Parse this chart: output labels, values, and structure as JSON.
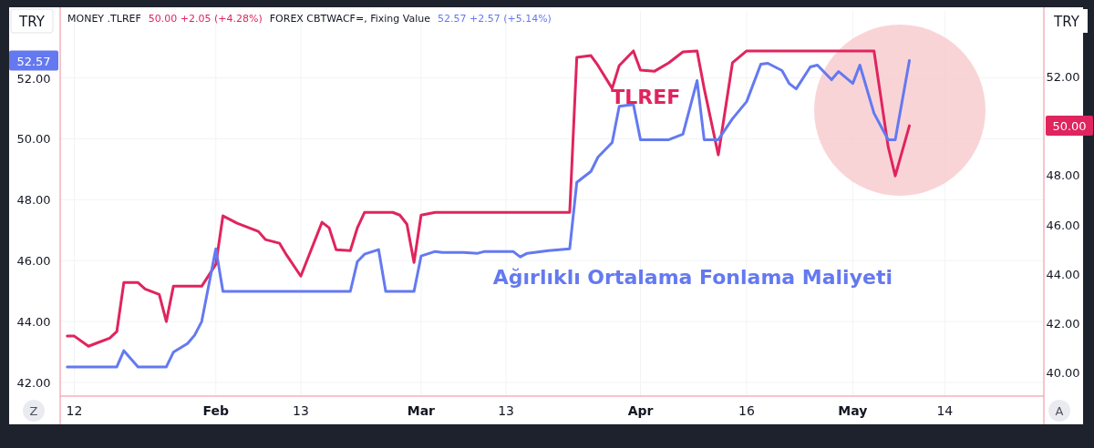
{
  "chart_data": {
    "type": "line",
    "ylabel": "TRY",
    "y2label": "TRY",
    "xlim": [
      "--01-10",
      "--05-28"
    ],
    "xticks": [
      {
        "value": "--01-12",
        "label": "12"
      },
      {
        "value": "--02-01",
        "label": "Feb"
      },
      {
        "value": "--02-13",
        "label": "13"
      },
      {
        "value": "--03-01",
        "label": "Mar"
      },
      {
        "value": "--03-13",
        "label": "13"
      },
      {
        "value": "--04-01",
        "label": "Apr"
      },
      {
        "value": "--04-16",
        "label": "16"
      },
      {
        "value": "--05-01",
        "label": "May"
      },
      {
        "value": "--05-14",
        "label": "14"
      }
    ],
    "ylim": [
      41.55,
      54.2
    ],
    "yticks": [
      {
        "value": 42,
        "label": "42.00"
      },
      {
        "value": 44,
        "label": "44.00"
      },
      {
        "value": 46,
        "label": "46.00"
      },
      {
        "value": 48,
        "label": "48.00"
      },
      {
        "value": 50,
        "label": "50.00"
      },
      {
        "value": 52,
        "label": "52.00"
      }
    ],
    "y2lim": [
      39.05,
      54.65
    ],
    "y2ticks": [
      {
        "value": 40,
        "label": "40.00"
      },
      {
        "value": 42,
        "label": "42.00"
      },
      {
        "value": 44,
        "label": "44.00"
      },
      {
        "value": 46,
        "label": "46.00"
      },
      {
        "value": 48,
        "label": "48.00"
      },
      {
        "value": 52,
        "label": "52.00"
      }
    ],
    "grid": true,
    "series": [
      {
        "name": "TLREF",
        "color": "#e0245e",
        "axis": "y2",
        "x": [
          "--01-11",
          "--01-12",
          "--01-14",
          "--01-15",
          "--01-17",
          "--01-18",
          "--01-19",
          "--01-21",
          "--01-22",
          "--01-24",
          "--01-25",
          "--01-26",
          "--01-30",
          "--02-01",
          "--02-02",
          "--02-04",
          "--02-07",
          "--02-08",
          "--02-10",
          "--02-11",
          "--02-13",
          "--02-16",
          "--02-17",
          "--02-18",
          "--02-20",
          "--02-21",
          "--02-22",
          "--02-26",
          "--02-27",
          "--02-28",
          "--02-29",
          "--03-01",
          "--03-03",
          "--03-14",
          "--03-22",
          "--03-23",
          "--03-25",
          "--03-26",
          "--03-28",
          "--03-29",
          "--03-31",
          "--04-01",
          "--04-03",
          "--04-05",
          "--04-07",
          "--04-09",
          "--04-10",
          "--04-12",
          "--04-14",
          "--04-16",
          "--05-04",
          "--05-06",
          "--05-07",
          "--05-09"
        ],
        "values": [
          41.48,
          41.48,
          41.07,
          41.18,
          41.4,
          41.66,
          43.65,
          43.65,
          43.39,
          43.17,
          42.07,
          43.5,
          43.5,
          44.39,
          46.35,
          46.05,
          45.72,
          45.39,
          45.24,
          44.76,
          43.91,
          46.09,
          45.87,
          44.98,
          44.94,
          45.87,
          46.49,
          46.49,
          46.38,
          46.01,
          44.46,
          46.38,
          46.49,
          46.49,
          46.49,
          52.77,
          52.84,
          52.44,
          51.51,
          52.44,
          53.03,
          52.25,
          52.21,
          52.55,
          52.99,
          53.03,
          51.51,
          48.82,
          52.55,
          53.03,
          53.03,
          49.15,
          47.97,
          50.0
        ]
      },
      {
        "name": "Ağırlıklı Ortalama Fonlama Maliyeti",
        "color": "#6479f0",
        "x": [
          "--01-11",
          "--01-18",
          "--01-19",
          "--01-21",
          "--01-25",
          "--01-26",
          "--01-28",
          "--01-29",
          "--01-30",
          "--02-01",
          "--02-02",
          "--02-20",
          "--02-21",
          "--02-22",
          "--02-24",
          "--02-25",
          "--02-29",
          "--03-01",
          "--03-03",
          "--03-04",
          "--03-07",
          "--03-09",
          "--03-10",
          "--03-14",
          "--03-15",
          "--03-16",
          "--03-19",
          "--03-22",
          "--03-23",
          "--03-25",
          "--03-26",
          "--03-28",
          "--03-29",
          "--03-31",
          "--04-01",
          "--04-05",
          "--04-07",
          "--04-09",
          "--04-10",
          "--04-12",
          "--04-14",
          "--04-16",
          "--04-18",
          "--04-19",
          "--04-21",
          "--04-22",
          "--04-23",
          "--04-25",
          "--04-26",
          "--04-28",
          "--04-29",
          "--05-01",
          "--05-02",
          "--05-04",
          "--05-06",
          "--05-07",
          "--05-09"
        ],
        "values": [
          42.51,
          42.51,
          43.04,
          42.51,
          42.51,
          42.99,
          43.28,
          43.55,
          44.0,
          46.39,
          44.99,
          44.99,
          45.97,
          46.21,
          46.36,
          44.99,
          44.99,
          46.15,
          46.3,
          46.27,
          46.27,
          46.24,
          46.3,
          46.3,
          46.12,
          46.24,
          46.33,
          46.39,
          48.57,
          48.93,
          49.4,
          49.88,
          51.07,
          51.13,
          49.97,
          49.97,
          50.15,
          51.91,
          49.97,
          49.97,
          50.66,
          51.22,
          52.45,
          52.48,
          52.24,
          51.82,
          51.64,
          52.36,
          52.42,
          51.94,
          52.21,
          51.82,
          52.42,
          50.84,
          49.97,
          49.97,
          52.57
        ]
      }
    ],
    "annotations": [
      "MONEY .TLREF",
      "50.00 +2.05 (+4.28%)",
      "FOREX CBTWACF=, Fixing Value",
      "52.57 +2.57 (+5.14%)",
      "Z",
      "A",
      "50.00",
      "52.57"
    ]
  }
}
